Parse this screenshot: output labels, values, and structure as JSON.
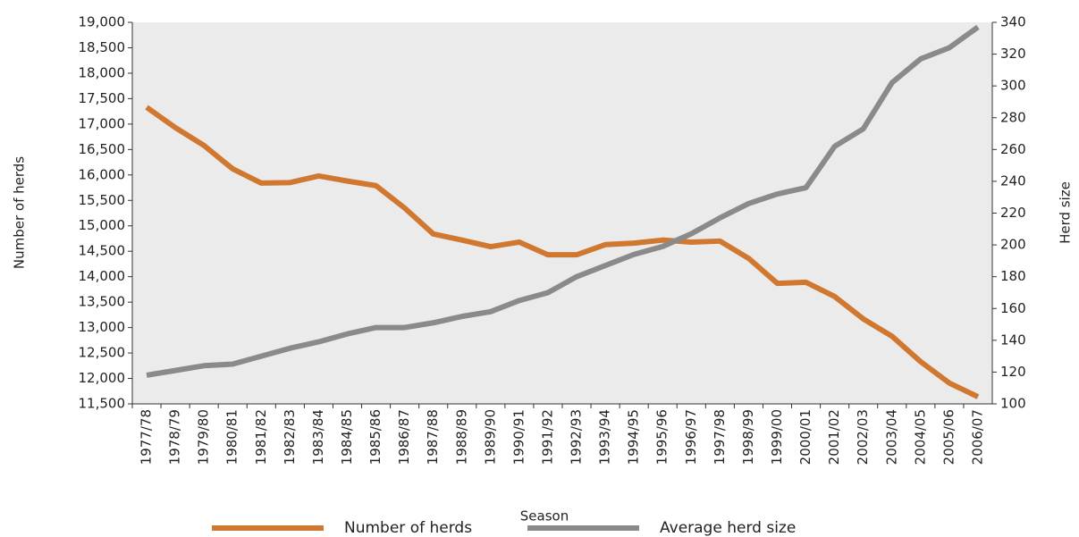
{
  "chart_data": {
    "type": "line",
    "x_label": "Season",
    "y_label": "Number of herds",
    "y2_label": "Herd size",
    "categories": [
      "1977/78",
      "1978/79",
      "1979/80",
      "1980/81",
      "1981/82",
      "1982/83",
      "1983/84",
      "1984/85",
      "1985/86",
      "1986/87",
      "1987/88",
      "1988/89",
      "1989/90",
      "1990/91",
      "1991/92",
      "1992/93",
      "1993/94",
      "1994/95",
      "1995/96",
      "1996/97",
      "1997/98",
      "1998/99",
      "1999/00",
      "2000/01",
      "2001/02",
      "2002/03",
      "2003/04",
      "2004/05",
      "2005/06",
      "2006/07"
    ],
    "series": [
      {
        "name": "Number of herds",
        "color": "#d0782f",
        "values": [
          17330,
          16930,
          16580,
          16120,
          15840,
          15850,
          15980,
          15880,
          15790,
          15350,
          14840,
          14720,
          14590,
          14680,
          14430,
          14430,
          14630,
          14660,
          14720,
          14680,
          14700,
          14360,
          13870,
          13890,
          13610,
          13170,
          12830,
          12330,
          11910,
          11640
        ]
      },
      {
        "name": "Average herd size",
        "color": "#8a8a8a",
        "axis": "y2",
        "values": [
          118,
          121,
          124,
          125,
          130,
          135,
          139,
          144,
          148,
          148,
          151,
          155,
          158,
          165,
          170,
          180,
          187,
          194,
          199,
          207,
          217,
          226,
          232,
          236,
          262,
          273,
          302,
          317,
          324,
          337
        ]
      }
    ],
    "ylim": [
      11500,
      19000
    ],
    "yticks": [
      {
        "value": 11500,
        "label": "11,500"
      },
      {
        "value": 12000,
        "label": "12,000"
      },
      {
        "value": 12500,
        "label": "12,500"
      },
      {
        "value": 13000,
        "label": "13,000"
      },
      {
        "value": 13500,
        "label": "13,500"
      },
      {
        "value": 14000,
        "label": "14,000"
      },
      {
        "value": 14500,
        "label": "14,500"
      },
      {
        "value": 15000,
        "label": "15,000"
      },
      {
        "value": 15500,
        "label": "15,500"
      },
      {
        "value": 16000,
        "label": "16,000"
      },
      {
        "value": 16500,
        "label": "16,500"
      },
      {
        "value": 17000,
        "label": "17,000"
      },
      {
        "value": 17500,
        "label": "17,500"
      },
      {
        "value": 18000,
        "label": "18,000"
      },
      {
        "value": 18500,
        "label": "18,500"
      },
      {
        "value": 19000,
        "label": "19,000"
      }
    ],
    "y2lim": [
      100,
      340
    ],
    "y2ticks": [
      100,
      120,
      140,
      160,
      180,
      200,
      220,
      240,
      260,
      280,
      300,
      320,
      340
    ],
    "grid": false,
    "legend": "bottom"
  }
}
